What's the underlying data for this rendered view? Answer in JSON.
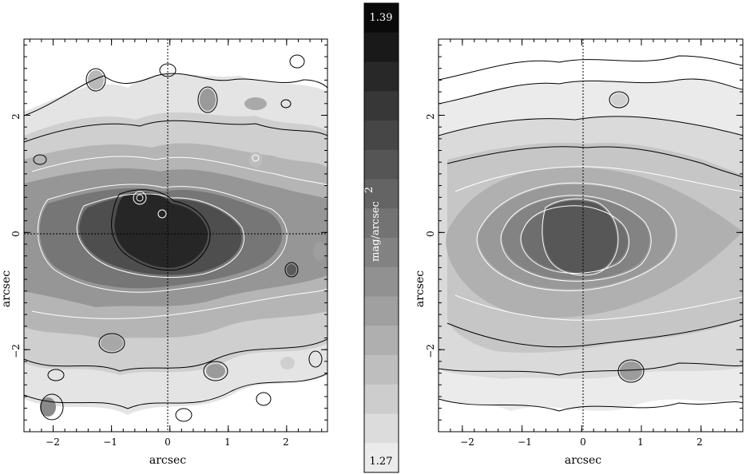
{
  "chart_data": [
    {
      "type": "heatmap",
      "panel": "left",
      "xlabel": "arcsec",
      "ylabel": "arcsec",
      "xlim": [
        -2.5,
        2.7
      ],
      "ylim": [
        -3.4,
        3.3
      ],
      "xticks": [
        -2,
        -1,
        0,
        1,
        2
      ],
      "yticks": [
        -2,
        0,
        2
      ],
      "xtick_labels": [
        "−2",
        "−1",
        "0",
        "1",
        "2"
      ],
      "ytick_labels": [
        "−2",
        "0",
        "2"
      ],
      "reference_lines": {
        "x": 0,
        "y": 0
      },
      "contours": "irregular noisy isophotes",
      "peak_center": [
        0.0,
        0.0
      ]
    },
    {
      "type": "heatmap",
      "panel": "right",
      "xlabel": "arcsec",
      "ylabel": "arcsec",
      "xlim": [
        -2.4,
        2.7
      ],
      "ylim": [
        -3.4,
        3.3
      ],
      "xticks": [
        -2,
        -1,
        0,
        1,
        2
      ],
      "yticks": [
        -2,
        0,
        2
      ],
      "xtick_labels": [
        "−2",
        "−1",
        "0",
        "1",
        "2"
      ],
      "ytick_labels": [
        "−2",
        "0",
        "2"
      ],
      "reference_lines": {
        "x": 0
      },
      "contours": "smooth elliptical isophotes",
      "peak_center": [
        0.1,
        0.0
      ]
    }
  ],
  "colorbar": {
    "max_label": "1.39",
    "min_label": "1.27",
    "unit_label": "mag/arcsec",
    "unit_superscript": "2",
    "levels": 16
  }
}
